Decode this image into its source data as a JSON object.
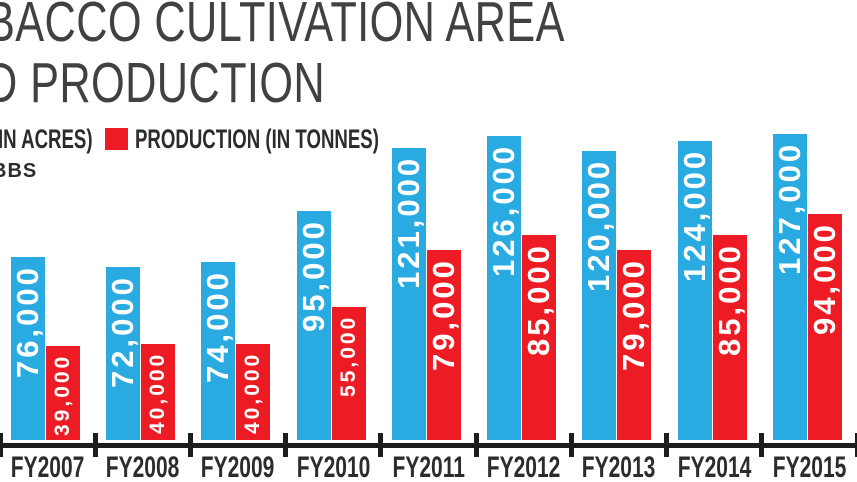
{
  "title": {
    "line1": "BACCO CULTIVATION AREA",
    "line2": "D PRODUCTION"
  },
  "legend": {
    "items": [
      {
        "label": "IN ACRES)",
        "series": "area",
        "swatch_color": "#29abe2",
        "swatch_visible": false
      },
      {
        "label": "PRODUCTION (IN TONNES)",
        "series": "production",
        "swatch_color": "#ed1c24",
        "swatch_visible": true
      }
    ]
  },
  "source_label": "BBS",
  "colors": {
    "area": "#29abe2",
    "production": "#ed1c24",
    "axis": "#1e1c1c",
    "title_text": "#414042",
    "label_text": "#2e2b2c",
    "bar_label": "#ffffff"
  },
  "chart_data": {
    "type": "bar",
    "title": "BACCO CULTIVATION AREA / D PRODUCTION (title cropped at left edge)",
    "categories": [
      "FY2007",
      "FY2008",
      "FY2009",
      "FY2010",
      "FY2011",
      "FY2012",
      "FY2013",
      "FY2014",
      "FY2015"
    ],
    "series": [
      {
        "name": "IN ACRES)",
        "color": "#29abe2",
        "values": [
          76000,
          72000,
          74000,
          95000,
          121000,
          126000,
          120000,
          124000,
          127000
        ]
      },
      {
        "name": "PRODUCTION (IN TONNES)",
        "color": "#ed1c24",
        "values": [
          39000,
          40000,
          40000,
          55000,
          79000,
          85000,
          79000,
          85000,
          94000
        ]
      }
    ],
    "xlabel": "",
    "ylabel": "",
    "ylim": [
      0,
      130000
    ],
    "grid": false,
    "legend_position": "top-left",
    "value_labels": "comma-formatted, white, rotated 90deg reading bottom-to-top, inside bar near top"
  }
}
